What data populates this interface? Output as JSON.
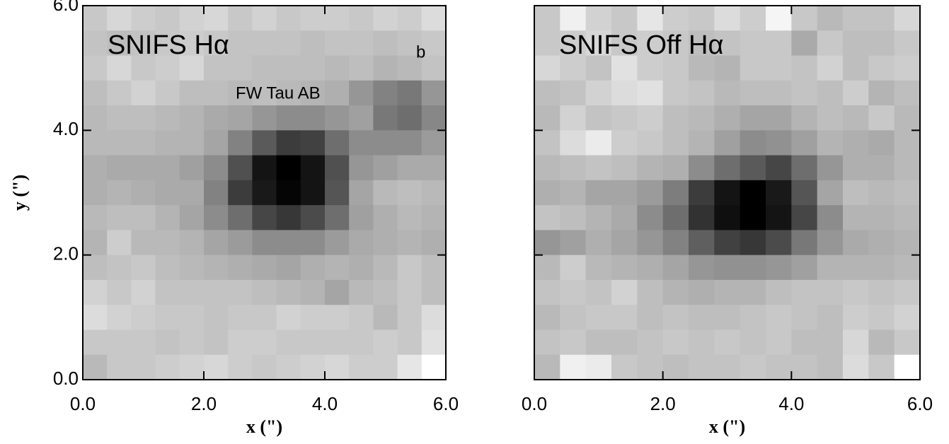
{
  "chart_data": [
    {
      "type": "heatmap",
      "title": "SNIFS Hα",
      "annotations": [
        "b",
        "FW Tau AB"
      ],
      "xlabel": "x (\")",
      "ylabel": "y (\")",
      "xlim": [
        0,
        6
      ],
      "ylim": [
        0,
        6
      ],
      "xticks": [
        {
          "value": 0,
          "label": "0.0"
        },
        {
          "value": 2,
          "label": "2.0"
        },
        {
          "value": 4,
          "label": "4.0"
        },
        {
          "value": 6,
          "label": "6.0"
        }
      ],
      "yticks": [
        {
          "value": 0,
          "label": "0.0"
        },
        {
          "value": 2,
          "label": "2.0"
        },
        {
          "value": 4,
          "label": "4.0"
        },
        {
          "value": 6,
          "label": "6.0"
        }
      ],
      "show_ytick_labels": true,
      "colormap": "gray",
      "zlim": [
        0,
        255
      ],
      "z": [
        [
          200,
          215,
          205,
          200,
          210,
          215,
          200,
          210,
          200,
          205,
          205,
          200,
          210,
          205,
          220
        ],
        [
          195,
          190,
          195,
          200,
          205,
          200,
          195,
          195,
          195,
          190,
          195,
          195,
          190,
          195,
          200
        ],
        [
          200,
          215,
          200,
          205,
          215,
          195,
          195,
          190,
          190,
          190,
          185,
          190,
          180,
          185,
          195
        ],
        [
          190,
          200,
          210,
          200,
          190,
          190,
          185,
          190,
          185,
          180,
          175,
          150,
          130,
          120,
          150
        ],
        [
          185,
          190,
          190,
          185,
          180,
          170,
          165,
          150,
          140,
          140,
          150,
          160,
          120,
          110,
          135
        ],
        [
          185,
          185,
          185,
          180,
          180,
          165,
          130,
          90,
          60,
          65,
          110,
          140,
          140,
          140,
          155
        ],
        [
          175,
          170,
          170,
          170,
          160,
          140,
          80,
          20,
          0,
          20,
          80,
          150,
          160,
          170,
          170
        ],
        [
          175,
          180,
          175,
          170,
          170,
          130,
          60,
          25,
          5,
          20,
          85,
          165,
          185,
          190,
          185
        ],
        [
          185,
          190,
          190,
          180,
          165,
          140,
          110,
          70,
          55,
          75,
          110,
          160,
          175,
          185,
          180
        ],
        [
          180,
          205,
          185,
          185,
          180,
          165,
          155,
          140,
          140,
          140,
          155,
          170,
          175,
          180,
          175
        ],
        [
          190,
          195,
          200,
          190,
          185,
          180,
          175,
          170,
          165,
          175,
          180,
          175,
          185,
          200,
          190
        ],
        [
          210,
          200,
          210,
          195,
          195,
          195,
          195,
          190,
          185,
          180,
          165,
          185,
          190,
          200,
          190
        ],
        [
          220,
          210,
          205,
          200,
          200,
          195,
          200,
          200,
          210,
          205,
          205,
          200,
          185,
          200,
          220
        ],
        [
          200,
          200,
          200,
          195,
          200,
          195,
          205,
          205,
          200,
          200,
          200,
          200,
          205,
          200,
          225
        ],
        [
          185,
          200,
          200,
          205,
          210,
          215,
          205,
          200,
          205,
          210,
          215,
          205,
          205,
          230,
          255
        ]
      ]
    },
    {
      "type": "heatmap",
      "title": "SNIFS Off Hα",
      "xlabel": "x (\")",
      "xlim": [
        0,
        6
      ],
      "ylim": [
        0,
        6
      ],
      "xticks": [
        {
          "value": 0,
          "label": "0.0"
        },
        {
          "value": 2,
          "label": "2.0"
        },
        {
          "value": 4,
          "label": "4.0"
        },
        {
          "value": 6,
          "label": "6.0"
        }
      ],
      "yticks": [
        0,
        2,
        4,
        6
      ],
      "show_ytick_labels": false,
      "colormap": "gray",
      "zlim": [
        0,
        255
      ],
      "z": [
        [
          200,
          240,
          210,
          200,
          230,
          205,
          200,
          220,
          205,
          245,
          200,
          185,
          195,
          195,
          215
        ],
        [
          200,
          205,
          215,
          200,
          205,
          200,
          190,
          195,
          200,
          200,
          170,
          200,
          190,
          190,
          200
        ],
        [
          215,
          205,
          195,
          225,
          205,
          200,
          185,
          180,
          200,
          200,
          195,
          210,
          190,
          200,
          205
        ],
        [
          190,
          195,
          210,
          220,
          225,
          200,
          195,
          185,
          190,
          190,
          195,
          190,
          205,
          180,
          190
        ],
        [
          185,
          210,
          195,
          200,
          205,
          190,
          185,
          175,
          165,
          165,
          180,
          190,
          185,
          200,
          185
        ],
        [
          195,
          220,
          235,
          205,
          200,
          190,
          180,
          160,
          140,
          145,
          160,
          180,
          175,
          170,
          185
        ],
        [
          185,
          190,
          195,
          190,
          180,
          175,
          140,
          110,
          90,
          70,
          110,
          150,
          175,
          175,
          185
        ],
        [
          175,
          180,
          165,
          165,
          155,
          125,
          60,
          20,
          0,
          25,
          85,
          165,
          190,
          185,
          190
        ],
        [
          195,
          190,
          180,
          170,
          140,
          110,
          50,
          15,
          0,
          20,
          70,
          140,
          180,
          180,
          185
        ],
        [
          150,
          160,
          175,
          165,
          150,
          130,
          95,
          65,
          55,
          75,
          120,
          150,
          170,
          175,
          180
        ],
        [
          185,
          205,
          185,
          180,
          175,
          165,
          150,
          145,
          145,
          150,
          160,
          180,
          180,
          180,
          185
        ],
        [
          195,
          200,
          195,
          210,
          190,
          180,
          175,
          180,
          180,
          190,
          195,
          195,
          200,
          195,
          200
        ],
        [
          185,
          195,
          200,
          200,
          190,
          195,
          190,
          190,
          195,
          200,
          195,
          190,
          205,
          200,
          210
        ],
        [
          195,
          200,
          190,
          190,
          195,
          200,
          195,
          200,
          195,
          200,
          190,
          190,
          215,
          185,
          200
        ],
        [
          185,
          240,
          235,
          200,
          195,
          190,
          195,
          195,
          200,
          195,
          195,
          190,
          220,
          200,
          255
        ]
      ]
    }
  ]
}
